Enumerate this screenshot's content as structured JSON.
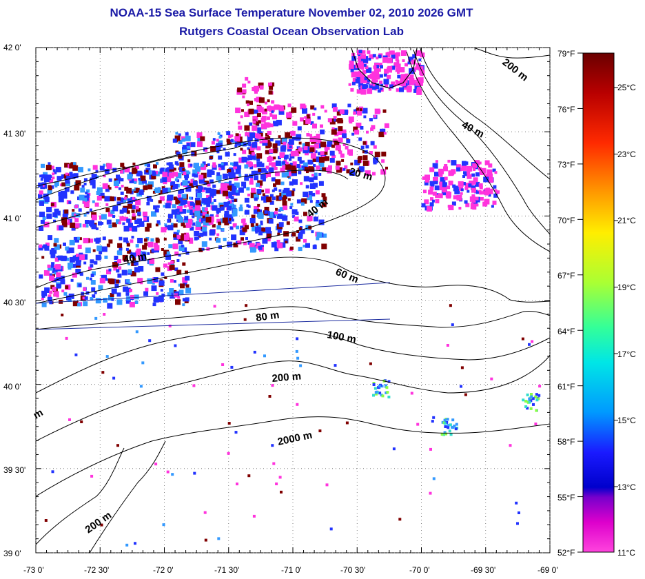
{
  "title": {
    "line1": "NOAA-15 Sea Surface Temperature November 02, 2010 2026 GMT",
    "line2": "Rutgers Coastal Ocean Observation Lab"
  },
  "axes": {
    "lat_ticks": [
      "42 0'",
      "41 30'",
      "41 0'",
      "40 30'",
      "40 0'",
      "39 30'",
      "39 0'"
    ],
    "lon_ticks": [
      "-73 0'",
      "-72 30'",
      "-72 0'",
      "-71 30'",
      "-71 0'",
      "-70 30'",
      "-70 0'",
      "-69 30'",
      "-69 0'"
    ],
    "lat_range": [
      39.0,
      42.0
    ],
    "lon_range": [
      -73.0,
      -69.0
    ],
    "grid": true
  },
  "colorbar": {
    "fahrenheit_labels": [
      "79°F",
      "76°F",
      "73°F",
      "70°F",
      "67°F",
      "64°F",
      "61°F",
      "58°F",
      "55°F",
      "52°F"
    ],
    "celsius_labels": [
      "25°C",
      "23°C",
      "21°C",
      "19°C",
      "17°C",
      "15°C",
      "13°C",
      "11°C"
    ],
    "range_f": [
      52,
      79
    ],
    "colors_top_to_bottom": [
      "#800000",
      "#cc0000",
      "#ff5500",
      "#ffaa00",
      "#ffff00",
      "#88ff44",
      "#22ee88",
      "#00dddd",
      "#0088ff",
      "#0000ff",
      "#8800cc",
      "#ff00cc",
      "#ff44dd"
    ]
  },
  "contour_labels": [
    "200 m",
    "40 m",
    "20 m",
    "40 m",
    "40 m",
    "60 m",
    "80 m",
    "100 m",
    "200 m",
    "2000 m",
    "200 m",
    "m"
  ],
  "data_colors": {
    "cold": "#ff33dd",
    "cool": "#2233ff",
    "mid": "#3399ff",
    "warm": "#800000",
    "coast": "#000000",
    "track": "#1a2a9e"
  }
}
